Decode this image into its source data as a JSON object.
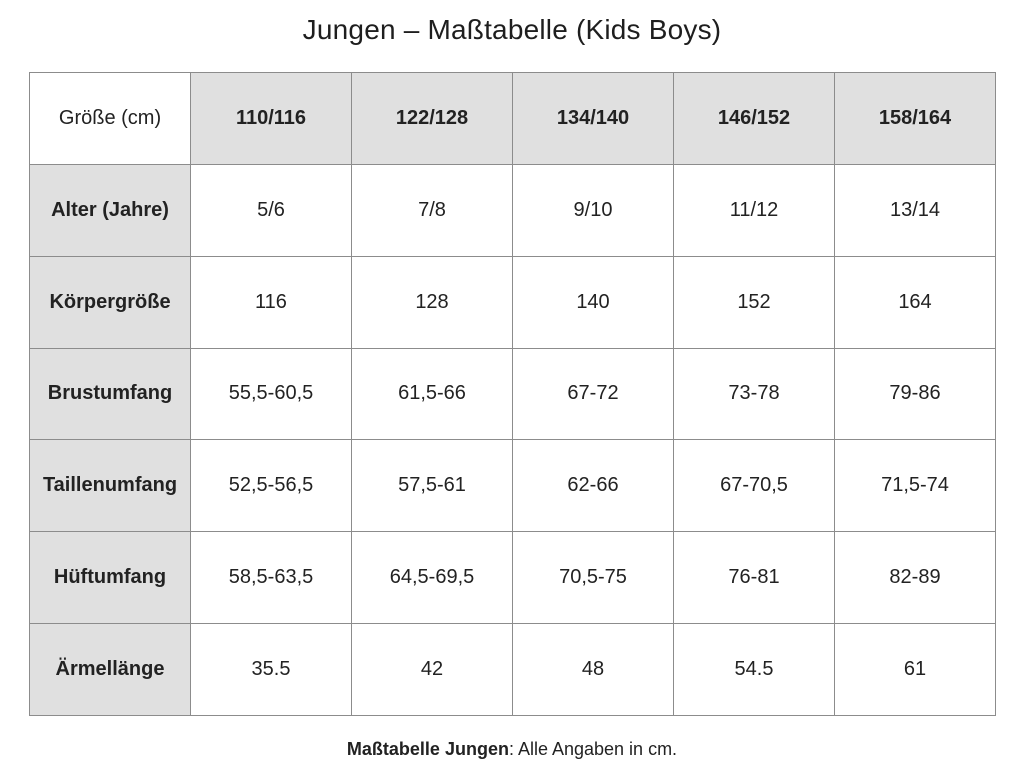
{
  "title": "Jungen – Maßtabelle (Kids Boys)",
  "table": {
    "corner_label": "Größe (cm)",
    "sizes": [
      "110/116",
      "122/128",
      "134/140",
      "146/152",
      "158/164"
    ],
    "rows": [
      {
        "label": "Alter (Jahre)",
        "values": [
          "5/6",
          "7/8",
          "9/10",
          "11/12",
          "13/14"
        ]
      },
      {
        "label": "Körpergröße",
        "values": [
          "116",
          "128",
          "140",
          "152",
          "164"
        ]
      },
      {
        "label": "Brustumfang",
        "values": [
          "55,5-60,5",
          "61,5-66",
          "67-72",
          "73-78",
          "79-86"
        ]
      },
      {
        "label": "Taillenumfang",
        "values": [
          "52,5-56,5",
          "57,5-61",
          "62-66",
          "67-70,5",
          "71,5-74"
        ]
      },
      {
        "label": "Hüftumfang",
        "values": [
          "58,5-63,5",
          "64,5-69,5",
          "70,5-75",
          "76-81",
          "82-89"
        ]
      },
      {
        "label": "Ärmellänge",
        "values": [
          "35.5",
          "42",
          "48",
          "54.5",
          "61"
        ]
      }
    ]
  },
  "footnote": {
    "bold": "Maßtabelle Jungen",
    "rest": ": Alle Angaben in cm."
  },
  "colors": {
    "header_fill": "#e0e0e0",
    "border": "#8c8c8c",
    "text": "#222222"
  }
}
